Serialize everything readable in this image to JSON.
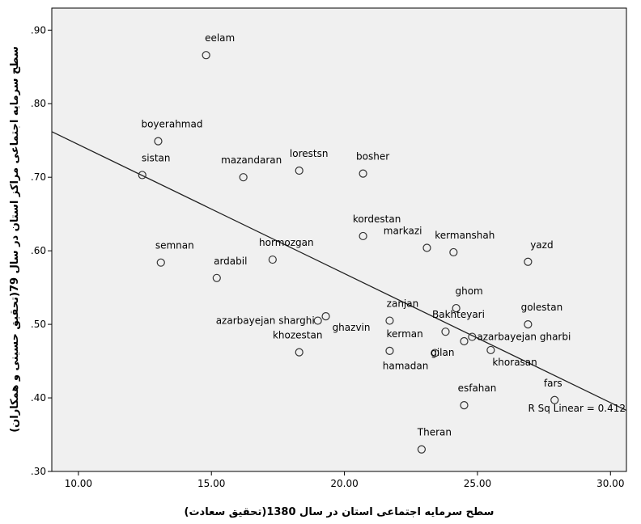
{
  "chart_data": {
    "type": "scatter",
    "xlabel": "سطح سرمایه اجتماعی استان در سال 1380(تحقیق سعادت)",
    "ylabel": "سطح سرمایه اجتماعی مراکز استان در سال 79(تحقیق حسینی و همکاران)",
    "xlim": [
      9.0,
      30.6
    ],
    "ylim": [
      0.3,
      0.93
    ],
    "x_ticks": [
      10,
      15,
      20,
      25,
      30
    ],
    "x_tick_labels": [
      "10.00",
      "15.00",
      "20.00",
      "25.00",
      "30.00"
    ],
    "y_ticks": [
      0.3,
      0.4,
      0.5,
      0.6,
      0.7,
      0.8,
      0.9
    ],
    "y_tick_labels": [
      ".30",
      ".40",
      ".50",
      ".60",
      ".70",
      ".80",
      ".90"
    ],
    "grid": false,
    "background": "#f0f0f0",
    "fit_line": {
      "x": [
        9.0,
        30.6
      ],
      "y": [
        0.762,
        0.383
      ],
      "label": "R Sq Linear = 0.412"
    },
    "points": [
      {
        "label": "eelam",
        "x": 14.8,
        "y": 0.866
      },
      {
        "label": "boyerahmad",
        "x": 13.0,
        "y": 0.749
      },
      {
        "label": "sistan",
        "x": 12.4,
        "y": 0.703
      },
      {
        "label": "mazandaran",
        "x": 16.2,
        "y": 0.7
      },
      {
        "label": "lorestsn",
        "x": 18.3,
        "y": 0.709
      },
      {
        "label": "bosher",
        "x": 20.7,
        "y": 0.705
      },
      {
        "label": "kordestan",
        "x": 20.7,
        "y": 0.62
      },
      {
        "label": "markazi",
        "x": 23.1,
        "y": 0.604
      },
      {
        "label": "kermanshah",
        "x": 24.1,
        "y": 0.598
      },
      {
        "label": "yazd",
        "x": 26.9,
        "y": 0.585
      },
      {
        "label": "semnan",
        "x": 13.1,
        "y": 0.584
      },
      {
        "label": "hormozgan",
        "x": 17.3,
        "y": 0.588
      },
      {
        "label": "ardabil",
        "x": 15.2,
        "y": 0.563
      },
      {
        "label": "ghom",
        "x": 24.2,
        "y": 0.522
      },
      {
        "label": "golestan",
        "x": 26.9,
        "y": 0.5
      },
      {
        "label": "zanjan",
        "x": 21.7,
        "y": 0.505
      },
      {
        "label": "Bakhteyari",
        "x": 23.8,
        "y": 0.49
      },
      {
        "label": "azarbayejan sharghi",
        "x": 19.0,
        "y": 0.505
      },
      {
        "label": "ghazvin",
        "x": 19.3,
        "y": 0.511
      },
      {
        "label": "azarbayejan gharbi",
        "x": 24.8,
        "y": 0.483
      },
      {
        "label": "khozestan",
        "x": 18.3,
        "y": 0.462
      },
      {
        "label": "kerman",
        "x": 21.7,
        "y": 0.464
      },
      {
        "label": "hamadan",
        "x": 23.4,
        "y": 0.461
      },
      {
        "label": "gilan",
        "x": 24.5,
        "y": 0.477
      },
      {
        "label": "khorasan",
        "x": 25.5,
        "y": 0.465
      },
      {
        "label": "fars",
        "x": 27.9,
        "y": 0.397
      },
      {
        "label": "esfahan",
        "x": 24.5,
        "y": 0.39
      },
      {
        "label": "Theran",
        "x": 22.9,
        "y": 0.33
      }
    ]
  }
}
